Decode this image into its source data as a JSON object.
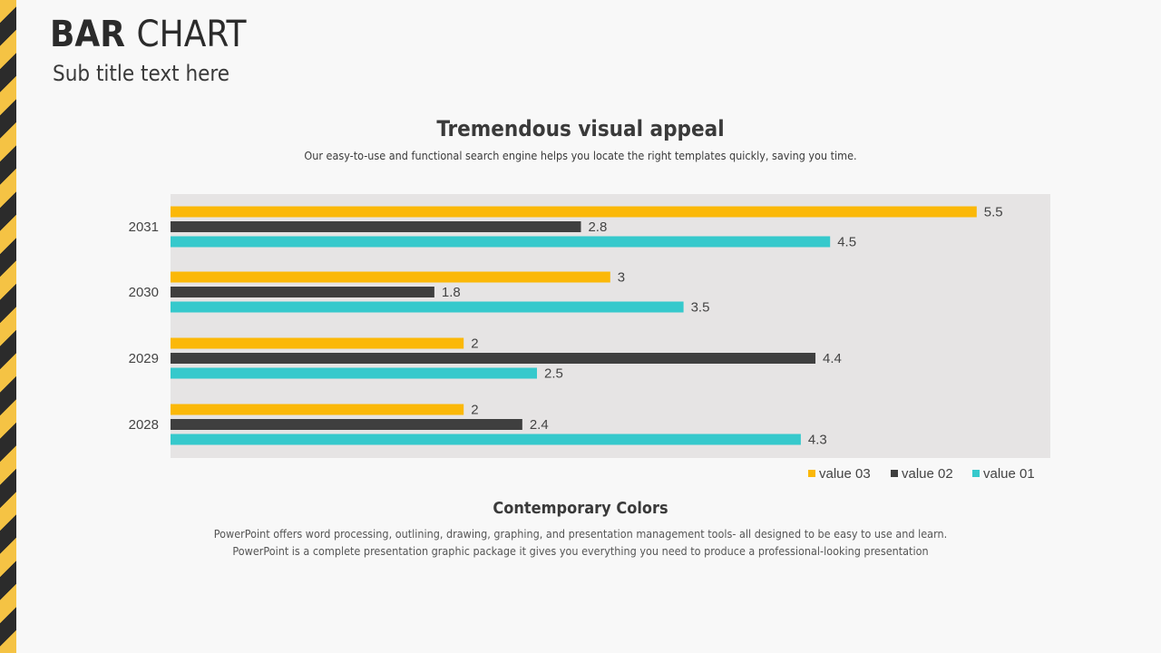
{
  "page": {
    "title_strong": "BAR",
    "title_light": "CHART",
    "subtitle": "Sub title text here",
    "heading": "Tremendous visual appeal",
    "heading_desc": "Our easy-to-use and functional search engine helps you locate the right templates quickly, saving you time.",
    "section2_title": "Contemporary Colors",
    "section2_line1": "PowerPoint offers word processing, outlining, drawing, graphing, and presentation management tools- all designed to be easy to use and learn.",
    "section2_line2": "PowerPoint is a complete presentation graphic package it gives you everything you need to produce a professional-looking presentation"
  },
  "colors": {
    "value03": "#fbb808",
    "value02": "#3f3f3f",
    "value01": "#36c9cc",
    "plot_bg": "#e6e4e4",
    "stripe_yellow": "#f5c344",
    "stripe_dark": "#2b2b2b"
  },
  "chart_data": {
    "type": "bar",
    "orientation": "horizontal",
    "categories": [
      "2031",
      "2030",
      "2029",
      "2028"
    ],
    "series": [
      {
        "name": "value 03",
        "color": "#fbb808",
        "values": [
          5.5,
          3,
          2,
          2
        ]
      },
      {
        "name": "value 02",
        "color": "#3f3f3f",
        "values": [
          2.8,
          1.8,
          4.4,
          2.4
        ]
      },
      {
        "name": "value 01",
        "color": "#36c9cc",
        "values": [
          4.5,
          3.5,
          2.5,
          4.3
        ]
      }
    ],
    "data_labels": true,
    "legend": "bottom-right",
    "legend_order": [
      "value 03",
      "value 02",
      "value 01"
    ],
    "grid": false,
    "xlim": [
      0,
      6
    ]
  }
}
